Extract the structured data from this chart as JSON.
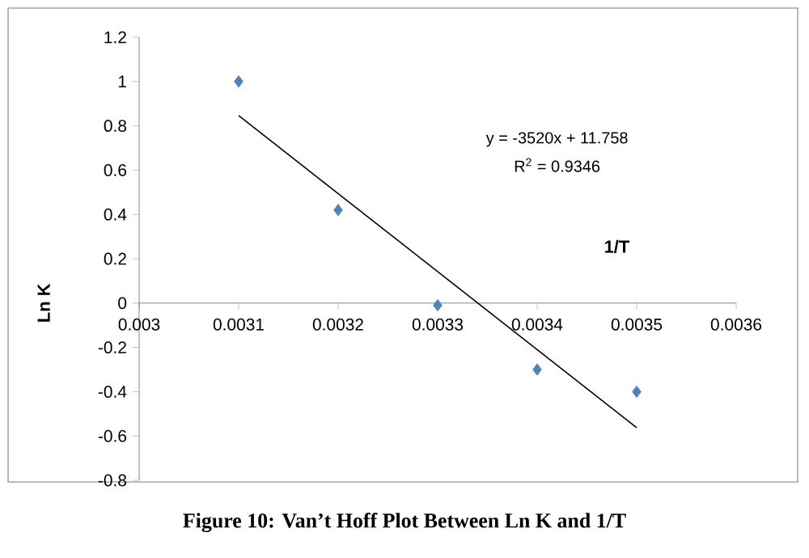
{
  "chart_data": {
    "type": "scatter",
    "xlabel": "1/T",
    "ylabel": "Ln K",
    "series": [
      {
        "color": "#4f81bd",
        "marker": "diamond",
        "x": [
          0.0031,
          0.0032,
          0.0033,
          0.0034,
          0.0035
        ],
        "values": [
          1.0,
          0.42,
          -0.01,
          -0.3,
          -0.4
        ]
      },
      {
        "type": "line",
        "color": "#000000",
        "marker": "none",
        "x": [
          0.0031,
          0.0035
        ],
        "values": [
          0.846,
          -0.562
        ]
      }
    ],
    "xlim": [
      0.003,
      0.0036
    ],
    "xticks": [
      0.003,
      0.0031,
      0.0032,
      0.0033,
      0.0034,
      0.0035,
      0.0036
    ],
    "ylim": [
      -0.8,
      1.2
    ],
    "yticks": [
      -0.8,
      -0.6,
      -0.4,
      -0.2,
      0,
      0.2,
      0.4,
      0.6,
      0.8,
      1,
      1.2
    ],
    "grid": false,
    "annotations": [
      "y = -3520x + 11.758",
      "R$^{2}$ = 0.9346",
      "Figure 10: Van’t Hoff Plot Between Ln K and 1/T"
    ]
  }
}
